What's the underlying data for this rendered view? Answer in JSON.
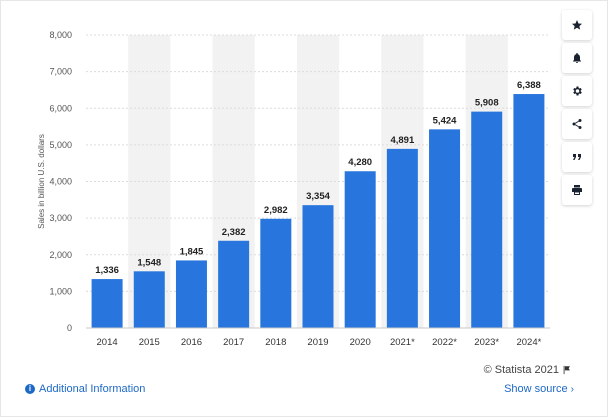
{
  "chart_data": {
    "type": "bar",
    "categories": [
      "2014",
      "2015",
      "2016",
      "2017",
      "2018",
      "2019",
      "2020",
      "2021*",
      "2022*",
      "2023*",
      "2024*"
    ],
    "values": [
      1336,
      1548,
      1845,
      2382,
      2982,
      3354,
      4280,
      4891,
      5424,
      5908,
      6388
    ],
    "value_labels": [
      "1,336",
      "1,548",
      "1,845",
      "2,382",
      "2,982",
      "3,354",
      "4,280",
      "4,891",
      "5,424",
      "5,908",
      "6,388"
    ],
    "ylabel": "Sales in billion U.S. dollars",
    "yticks": [
      "0",
      "1,000",
      "2,000",
      "3,000",
      "4,000",
      "5,000",
      "6,000",
      "7,000",
      "8,000"
    ],
    "ylim": [
      0,
      8000
    ],
    "bar_color": "#2876dd",
    "grid": true,
    "alternating_column_background": "#f2f2f2"
  },
  "toolbar": {
    "items": [
      "star-icon",
      "bell-icon",
      "gear-icon",
      "share-icon",
      "quote-icon",
      "print-icon"
    ]
  },
  "footer": {
    "additional_info": "Additional Information",
    "copyright": "© Statista 2021",
    "show_source": "Show source"
  }
}
